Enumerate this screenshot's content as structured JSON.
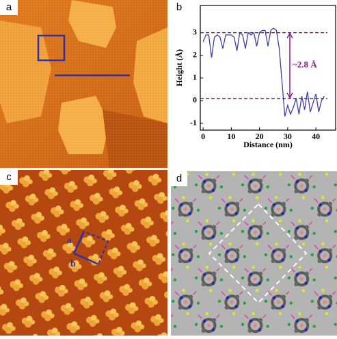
{
  "panel_a": {
    "label": "a"
  },
  "panel_c": {
    "label": "c",
    "vector_labels": [
      "a",
      "b"
    ]
  },
  "panel_d": {
    "label": "d"
  },
  "chart_data": {
    "type": "line",
    "panel_label": "b",
    "xlabel": "Distance (nm)",
    "ylabel": "Height (Å)",
    "x": [
      0,
      1,
      2,
      3,
      4,
      5,
      6,
      7,
      8,
      9,
      10,
      11,
      12,
      13,
      14,
      15,
      16,
      17,
      18,
      19,
      20,
      21,
      22,
      23,
      24,
      25,
      26,
      27,
      28,
      29,
      30,
      31,
      32,
      33,
      34,
      35,
      36,
      37,
      38,
      39,
      40,
      41,
      42,
      43
    ],
    "series": [
      {
        "color": "#3b3fa0",
        "values": [
          2.6,
          2.9,
          2.9,
          1.9,
          2.8,
          2.9,
          2.8,
          2.3,
          2.9,
          2.9,
          2.9,
          2.8,
          2.2,
          3.0,
          2.9,
          2.3,
          3.0,
          2.9,
          3.0,
          2.4,
          3.0,
          3.1,
          3.1,
          2.4,
          3.1,
          3.2,
          3.1,
          2.3,
          0.8,
          -0.7,
          -0.2,
          -0.6,
          -0.3,
          0.1,
          -0.6,
          0.2,
          -0.4,
          0.4,
          -0.5,
          -0.1,
          0.3,
          -0.5,
          0.0,
          0.2
        ]
      }
    ],
    "xlim": [
      -1,
      47
    ],
    "xticks": [
      0,
      10,
      20,
      30,
      40
    ],
    "ylim": [
      -1.3,
      4.2
    ],
    "yticks": [
      -1,
      0,
      1,
      2,
      3
    ],
    "reference_lines": [
      3,
      0.1
    ],
    "reference_color": "#8b1a8b",
    "annotation": "~2.8 Å"
  }
}
